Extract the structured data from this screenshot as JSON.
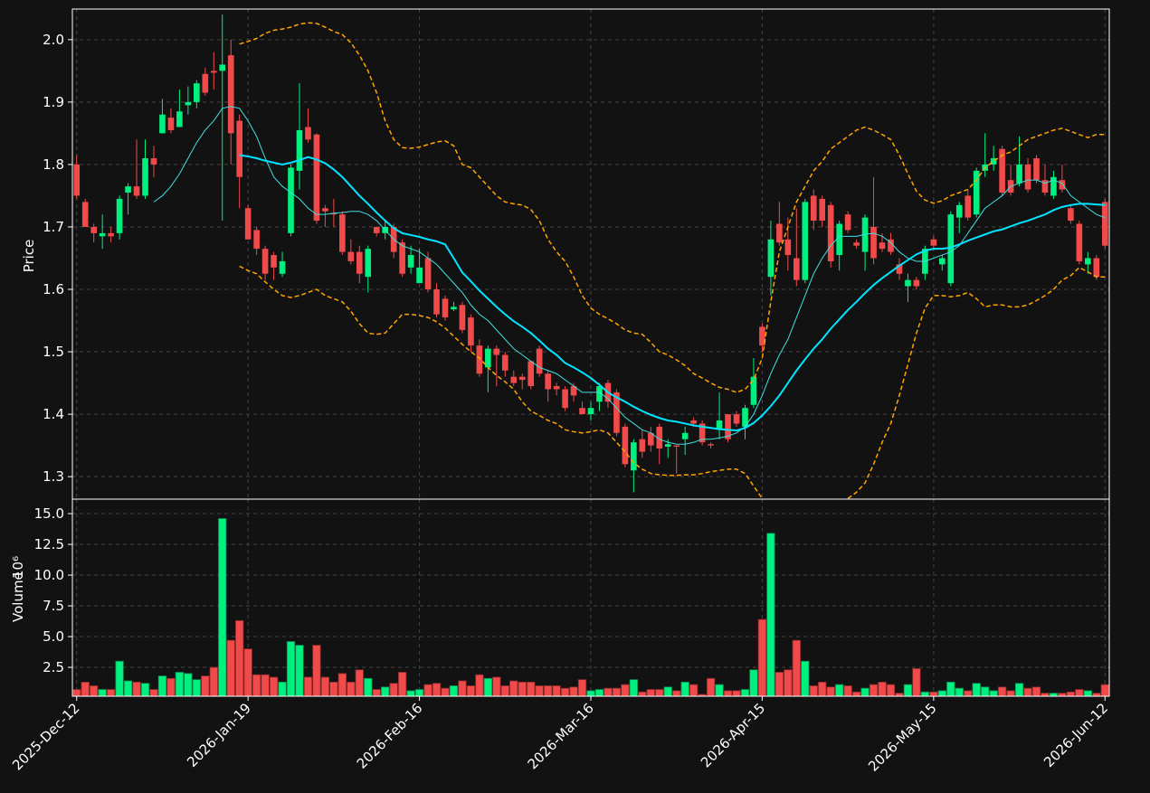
{
  "chart_data": {
    "type": "candlestick",
    "ylabel": "Price",
    "volume_ylabel": "Volume",
    "volume_multiplier": "10⁶",
    "xlim": [
      -0.5,
      120.5
    ],
    "xticks": [
      {
        "value": 0,
        "label": "2025-Dec-12"
      },
      {
        "value": 20,
        "label": "2026-Jan-19"
      },
      {
        "value": 40,
        "label": "2026-Feb-16"
      },
      {
        "value": 60,
        "label": "2026-Mar-16"
      },
      {
        "value": 80,
        "label": "2026-Apr-15"
      },
      {
        "value": 100,
        "label": "2026-May-15"
      },
      {
        "value": 120,
        "label": "2026-Jun-12"
      }
    ],
    "ylim": [
      1.264,
      2.049
    ],
    "yticks": [
      1.3,
      1.4,
      1.5,
      1.6,
      1.7,
      1.8,
      1.9,
      {
        "value": 2,
        "label": "2.0"
      }
    ],
    "volume_ylim": [
      0.15,
      16.18
    ],
    "volume_yticks": [
      2.5,
      {
        "value": 5,
        "label": "5.0"
      },
      7.5,
      {
        "value": 10,
        "label": "10.0"
      },
      12.5,
      {
        "value": 15,
        "label": "15.0"
      }
    ],
    "grid": true,
    "up_color": "#00f080",
    "down_color": "#f04a4a",
    "open": [
      1.8,
      1.74,
      1.7,
      1.685,
      1.69,
      1.69,
      1.755,
      1.765,
      1.75,
      1.81,
      1.85,
      1.875,
      1.86,
      1.895,
      1.9,
      1.945,
      1.95,
      1.95,
      1.975,
      1.87,
      1.73,
      1.695,
      1.665,
      1.655,
      1.625,
      1.69,
      1.79,
      1.86,
      1.848,
      1.73,
      1.722,
      1.72,
      1.66,
      1.66,
      1.62,
      1.7,
      1.69,
      1.7,
      1.675,
      1.635,
      1.61,
      1.65,
      1.6,
      1.585,
      1.568,
      1.575,
      1.555,
      1.51,
      1.475,
      1.505,
      1.495,
      1.46,
      1.46,
      1.485,
      1.505,
      1.465,
      1.445,
      1.44,
      1.445,
      1.41,
      1.4,
      1.42,
      1.45,
      1.435,
      1.38,
      1.31,
      1.36,
      1.37,
      1.38,
      1.348,
      1.35,
      1.36,
      1.39,
      1.385,
      1.352,
      1.375,
      1.4,
      1.4,
      1.38,
      1.415,
      1.54,
      1.62,
      1.705,
      1.68,
      1.65,
      1.615,
      1.75,
      1.745,
      1.735,
      1.655,
      1.72,
      1.675,
      1.66,
      1.7,
      1.675,
      1.68,
      1.64,
      1.605,
      1.615,
      1.625,
      1.68,
      1.64,
      1.61,
      1.715,
      1.75,
      1.72,
      1.79,
      1.8,
      1.825,
      1.775,
      1.77,
      1.8,
      1.81,
      1.775,
      1.75,
      1.775,
      1.73,
      1.705,
      1.64,
      1.65,
      1.74
    ],
    "high": [
      1.815,
      1.745,
      1.705,
      1.72,
      1.7,
      1.75,
      1.77,
      1.84,
      1.84,
      1.83,
      1.905,
      1.89,
      1.92,
      1.925,
      1.935,
      1.955,
      1.98,
      2.04,
      2.0,
      1.88,
      1.735,
      1.7,
      1.67,
      1.66,
      1.66,
      1.8,
      1.93,
      1.89,
      1.85,
      1.735,
      1.745,
      1.725,
      1.68,
      1.67,
      1.67,
      1.7,
      1.71,
      1.705,
      1.68,
      1.67,
      1.665,
      1.66,
      1.61,
      1.59,
      1.58,
      1.58,
      1.56,
      1.52,
      1.51,
      1.51,
      1.5,
      1.47,
      1.465,
      1.485,
      1.51,
      1.47,
      1.45,
      1.445,
      1.45,
      1.42,
      1.42,
      1.45,
      1.455,
      1.44,
      1.385,
      1.36,
      1.375,
      1.38,
      1.385,
      1.36,
      1.35,
      1.38,
      1.395,
      1.39,
      1.355,
      1.435,
      1.4,
      1.405,
      1.415,
      1.49,
      1.545,
      1.71,
      1.74,
      1.715,
      1.73,
      1.745,
      1.76,
      1.75,
      1.74,
      1.71,
      1.725,
      1.68,
      1.72,
      1.78,
      1.69,
      1.69,
      1.65,
      1.625,
      1.62,
      1.67,
      1.685,
      1.655,
      1.725,
      1.74,
      1.76,
      1.795,
      1.85,
      1.83,
      1.83,
      1.8,
      1.845,
      1.81,
      1.815,
      1.8,
      1.79,
      1.8,
      1.735,
      1.71,
      1.66,
      1.655,
      1.745
    ],
    "low": [
      1.745,
      1.7,
      1.675,
      1.665,
      1.675,
      1.68,
      1.72,
      1.745,
      1.745,
      1.78,
      1.85,
      1.85,
      1.86,
      1.88,
      1.89,
      1.91,
      1.92,
      1.71,
      1.8,
      1.73,
      1.68,
      1.655,
      1.615,
      1.615,
      1.62,
      1.685,
      1.76,
      1.835,
      1.705,
      1.7,
      1.7,
      1.655,
      1.64,
      1.61,
      1.595,
      1.685,
      1.68,
      1.65,
      1.62,
      1.625,
      1.61,
      1.595,
      1.555,
      1.55,
      1.565,
      1.53,
      1.5,
      1.46,
      1.435,
      1.445,
      1.46,
      1.445,
      1.44,
      1.44,
      1.46,
      1.42,
      1.43,
      1.405,
      1.42,
      1.4,
      1.39,
      1.405,
      1.41,
      1.365,
      1.315,
      1.275,
      1.33,
      1.34,
      1.32,
      1.33,
      1.305,
      1.335,
      1.38,
      1.35,
      1.345,
      1.36,
      1.355,
      1.38,
      1.36,
      1.41,
      1.5,
      1.59,
      1.67,
      1.63,
      1.605,
      1.61,
      1.695,
      1.7,
      1.635,
      1.63,
      1.69,
      1.665,
      1.63,
      1.64,
      1.66,
      1.655,
      1.615,
      1.58,
      1.6,
      1.615,
      1.665,
      1.63,
      1.605,
      1.69,
      1.71,
      1.715,
      1.78,
      1.79,
      1.75,
      1.75,
      1.765,
      1.755,
      1.77,
      1.75,
      1.745,
      1.755,
      1.705,
      1.64,
      1.625,
      1.615,
      1.665
    ],
    "close": [
      1.75,
      1.7,
      1.69,
      1.69,
      1.685,
      1.745,
      1.765,
      1.75,
      1.81,
      1.8,
      1.88,
      1.855,
      1.885,
      1.9,
      1.93,
      1.915,
      1.947,
      1.96,
      1.85,
      1.78,
      1.68,
      1.665,
      1.625,
      1.635,
      1.645,
      1.795,
      1.855,
      1.84,
      1.71,
      1.725,
      1.72,
      1.66,
      1.645,
      1.625,
      1.665,
      1.69,
      1.7,
      1.66,
      1.625,
      1.655,
      1.635,
      1.6,
      1.56,
      1.555,
      1.572,
      1.535,
      1.51,
      1.465,
      1.505,
      1.495,
      1.47,
      1.45,
      1.455,
      1.445,
      1.465,
      1.44,
      1.44,
      1.41,
      1.43,
      1.4,
      1.41,
      1.445,
      1.42,
      1.37,
      1.32,
      1.355,
      1.34,
      1.35,
      1.345,
      1.352,
      1.348,
      1.37,
      1.385,
      1.355,
      1.35,
      1.39,
      1.36,
      1.385,
      1.41,
      1.46,
      1.51,
      1.68,
      1.675,
      1.655,
      1.615,
      1.74,
      1.71,
      1.71,
      1.645,
      1.705,
      1.695,
      1.67,
      1.715,
      1.65,
      1.665,
      1.66,
      1.625,
      1.615,
      1.605,
      1.665,
      1.67,
      1.65,
      1.72,
      1.735,
      1.715,
      1.79,
      1.8,
      1.81,
      1.755,
      1.755,
      1.8,
      1.76,
      1.775,
      1.755,
      1.78,
      1.76,
      1.71,
      1.645,
      1.65,
      1.62,
      1.67
    ],
    "volume": [
      0.7,
      1.3,
      1.0,
      0.7,
      0.7,
      3.0,
      1.4,
      1.3,
      1.2,
      0.7,
      1.8,
      1.6,
      2.1,
      2.0,
      1.5,
      1.8,
      2.5,
      14.6,
      4.7,
      6.3,
      4.0,
      1.9,
      1.9,
      1.7,
      1.3,
      4.6,
      4.3,
      1.7,
      4.3,
      1.7,
      1.3,
      2.0,
      1.3,
      2.3,
      1.6,
      0.7,
      0.9,
      1.2,
      2.1,
      0.6,
      0.7,
      1.1,
      1.2,
      0.8,
      1.0,
      1.4,
      1.0,
      1.9,
      1.6,
      1.7,
      1.0,
      1.4,
      1.3,
      1.3,
      1.0,
      1.0,
      1.0,
      0.8,
      0.9,
      1.5,
      0.6,
      0.7,
      0.8,
      0.8,
      1.1,
      1.5,
      0.5,
      0.7,
      0.7,
      0.9,
      0.6,
      1.3,
      1.1,
      0.3,
      1.6,
      1.1,
      0.6,
      0.6,
      0.7,
      2.3,
      6.4,
      13.4,
      2.1,
      2.3,
      4.7,
      3.0,
      1.0,
      1.3,
      0.9,
      1.1,
      1.0,
      0.5,
      0.8,
      1.1,
      1.3,
      1.1,
      0.4,
      1.1,
      2.4,
      0.5,
      0.5,
      0.6,
      1.3,
      0.8,
      0.6,
      1.2,
      0.9,
      0.6,
      0.9,
      0.6,
      1.2,
      0.8,
      0.9,
      0.4,
      0.4,
      0.4,
      0.5,
      0.7,
      0.6,
      0.4,
      1.1
    ],
    "overlays": [
      {
        "color": "#40e0e0",
        "width": 1,
        "dash": false,
        "values": [
          null,
          null,
          null,
          null,
          null,
          null,
          null,
          null,
          null,
          1.74,
          1.75,
          1.765,
          1.785,
          1.81,
          1.835,
          1.855,
          1.87,
          1.89,
          1.893,
          1.89,
          1.87,
          1.845,
          1.81,
          1.78,
          1.765,
          1.755,
          1.745,
          1.73,
          1.72,
          1.72,
          1.722,
          1.723,
          1.725,
          1.725,
          1.72,
          1.71,
          1.695,
          1.68,
          1.67,
          1.665,
          1.66,
          1.65,
          1.64,
          1.625,
          1.61,
          1.595,
          1.575,
          1.56,
          1.55,
          1.535,
          1.52,
          1.505,
          1.495,
          1.485,
          1.475,
          1.47,
          1.465,
          1.455,
          1.445,
          1.435,
          1.435,
          1.435,
          1.425,
          1.41,
          1.395,
          1.385,
          1.375,
          1.37,
          1.36,
          1.355,
          1.352,
          1.352,
          1.355,
          1.36,
          1.36,
          1.362,
          1.365,
          1.37,
          1.38,
          1.4,
          1.43,
          1.465,
          1.495,
          1.52,
          1.555,
          1.59,
          1.625,
          1.65,
          1.67,
          1.685,
          1.685,
          1.685,
          1.688,
          1.69,
          1.685,
          1.675,
          1.66,
          1.65,
          1.645,
          1.645,
          1.65,
          1.655,
          1.66,
          1.67,
          1.69,
          1.71,
          1.73,
          1.74,
          1.75,
          1.765,
          1.77,
          1.775,
          1.775,
          1.77,
          1.775,
          1.77,
          1.75,
          1.74,
          1.73,
          1.72,
          1.715
        ]
      },
      {
        "color": "#00e5ff",
        "width": 2,
        "dash": false,
        "values": [
          null,
          null,
          null,
          null,
          null,
          null,
          null,
          null,
          null,
          null,
          null,
          null,
          null,
          null,
          null,
          null,
          null,
          null,
          null,
          1.815,
          1.813,
          1.81,
          1.806,
          1.803,
          1.8,
          1.803,
          1.807,
          1.812,
          1.808,
          1.802,
          1.792,
          1.78,
          1.765,
          1.75,
          1.737,
          1.723,
          1.71,
          1.698,
          1.69,
          1.687,
          1.684,
          1.68,
          1.677,
          1.672,
          1.65,
          1.627,
          1.613,
          1.598,
          1.585,
          1.572,
          1.56,
          1.549,
          1.54,
          1.53,
          1.518,
          1.505,
          1.495,
          1.482,
          1.475,
          1.467,
          1.458,
          1.447,
          1.435,
          1.427,
          1.42,
          1.412,
          1.405,
          1.399,
          1.394,
          1.39,
          1.388,
          1.385,
          1.382,
          1.38,
          1.378,
          1.376,
          1.375,
          1.374,
          1.378,
          1.386,
          1.398,
          1.413,
          1.43,
          1.45,
          1.47,
          1.488,
          1.505,
          1.52,
          1.537,
          1.552,
          1.567,
          1.58,
          1.594,
          1.607,
          1.618,
          1.628,
          1.638,
          1.647,
          1.656,
          1.662,
          1.665,
          1.665,
          1.667,
          1.672,
          1.678,
          1.683,
          1.688,
          1.693,
          1.696,
          1.701,
          1.706,
          1.71,
          1.715,
          1.72,
          1.727,
          1.732,
          1.735,
          1.737,
          1.737,
          1.736,
          1.735
        ]
      },
      {
        "color": "#ffa500",
        "width": 1.5,
        "dash": true,
        "values": [
          null,
          null,
          null,
          null,
          null,
          null,
          null,
          null,
          null,
          null,
          null,
          null,
          null,
          null,
          null,
          null,
          null,
          null,
          null,
          1.993,
          1.997,
          2.002,
          2.01,
          2.015,
          2.017,
          2.02,
          2.025,
          2.027,
          2.026,
          2.02,
          2.013,
          2.008,
          1.995,
          1.975,
          1.95,
          1.915,
          1.87,
          1.84,
          1.827,
          1.826,
          1.828,
          1.832,
          1.836,
          1.838,
          1.83,
          1.8,
          1.795,
          1.78,
          1.765,
          1.75,
          1.74,
          1.737,
          1.735,
          1.728,
          1.71,
          1.68,
          1.66,
          1.645,
          1.62,
          1.59,
          1.57,
          1.56,
          1.553,
          1.545,
          1.535,
          1.53,
          1.528,
          1.515,
          1.5,
          1.495,
          1.487,
          1.478,
          1.465,
          1.458,
          1.45,
          1.443,
          1.44,
          1.435,
          1.44,
          1.455,
          1.49,
          1.58,
          1.66,
          1.7,
          1.74,
          1.765,
          1.79,
          1.805,
          1.825,
          1.835,
          1.845,
          1.855,
          1.86,
          1.855,
          1.848,
          1.84,
          1.815,
          1.785,
          1.757,
          1.743,
          1.738,
          1.742,
          1.75,
          1.755,
          1.76,
          1.775,
          1.795,
          1.805,
          1.815,
          1.82,
          1.83,
          1.84,
          1.845,
          1.85,
          1.855,
          1.858,
          1.853,
          1.848,
          1.843,
          1.848,
          1.848
        ]
      },
      {
        "color": "#ffa500",
        "width": 1.5,
        "dash": true,
        "values": [
          null,
          null,
          null,
          null,
          null,
          null,
          null,
          null,
          null,
          null,
          null,
          null,
          null,
          null,
          null,
          null,
          null,
          null,
          null,
          1.637,
          1.63,
          1.625,
          1.612,
          1.6,
          1.59,
          1.587,
          1.59,
          1.595,
          1.6,
          1.59,
          1.585,
          1.58,
          1.565,
          1.545,
          1.53,
          1.528,
          1.53,
          1.545,
          1.56,
          1.56,
          1.558,
          1.555,
          1.548,
          1.538,
          1.525,
          1.512,
          1.5,
          1.49,
          1.475,
          1.462,
          1.452,
          1.44,
          1.42,
          1.405,
          1.398,
          1.39,
          1.385,
          1.375,
          1.372,
          1.37,
          1.372,
          1.375,
          1.37,
          1.355,
          1.34,
          1.322,
          1.312,
          1.305,
          1.303,
          1.302,
          1.302,
          1.303,
          1.303,
          1.305,
          1.308,
          1.31,
          1.312,
          1.312,
          1.305,
          1.285,
          1.265,
          null,
          null,
          null,
          null,
          null,
          null,
          null,
          null,
          null,
          1.265,
          1.275,
          1.29,
          1.32,
          1.355,
          1.385,
          1.43,
          1.48,
          1.53,
          1.57,
          1.59,
          1.59,
          1.588,
          1.59,
          1.595,
          1.585,
          1.572,
          1.575,
          1.575,
          1.572,
          1.572,
          1.575,
          1.582,
          1.59,
          1.6,
          1.615,
          1.622,
          1.635,
          1.628,
          1.62,
          1.62
        ]
      }
    ]
  }
}
